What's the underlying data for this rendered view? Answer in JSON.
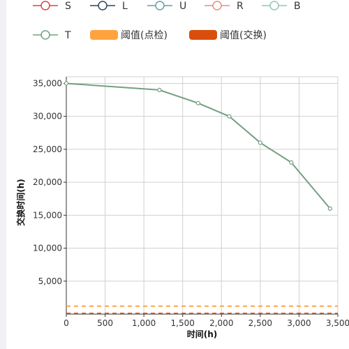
{
  "chart_data": {
    "type": "line",
    "title": "",
    "xlabel": "时间(h)",
    "ylabel": "交换时间(h)",
    "xlim": [
      0,
      3500
    ],
    "ylim": [
      0,
      36000
    ],
    "x_ticks": [
      0,
      500,
      1000,
      1500,
      2000,
      2500,
      3000,
      3500
    ],
    "y_ticks": [
      5000,
      10000,
      15000,
      20000,
      25000,
      30000,
      35000
    ],
    "grid": true,
    "legend_position": "top",
    "legend": [
      {
        "name": "S",
        "kind": "line",
        "color": "#d9444c"
      },
      {
        "name": "L",
        "kind": "line",
        "color": "#2f4554"
      },
      {
        "name": "U",
        "kind": "line",
        "color": "#61a0a8"
      },
      {
        "name": "R",
        "kind": "line",
        "color": "#e5917a"
      },
      {
        "name": "B",
        "kind": "line",
        "color": "#91c7ae"
      },
      {
        "name": "T",
        "kind": "line",
        "color": "#749f83"
      },
      {
        "name": "阈值(点检)",
        "kind": "box",
        "color": "#ffa33f"
      },
      {
        "name": "阈值(交换)",
        "kind": "box",
        "color": "#d94e0c"
      }
    ],
    "series": [
      {
        "name": "T",
        "color": "#749f83",
        "x": [
          0,
          1200,
          1700,
          2100,
          2500,
          2900,
          3400
        ],
        "values": [
          35000,
          34000,
          32000,
          30000,
          26000,
          23000,
          16000
        ]
      }
    ],
    "thresholds": [
      {
        "name": "阈值(点检)",
        "value": 1200,
        "color": "#ffa33f"
      },
      {
        "name": "阈值(交换)",
        "value": 100,
        "color": "#d94e0c"
      }
    ]
  }
}
